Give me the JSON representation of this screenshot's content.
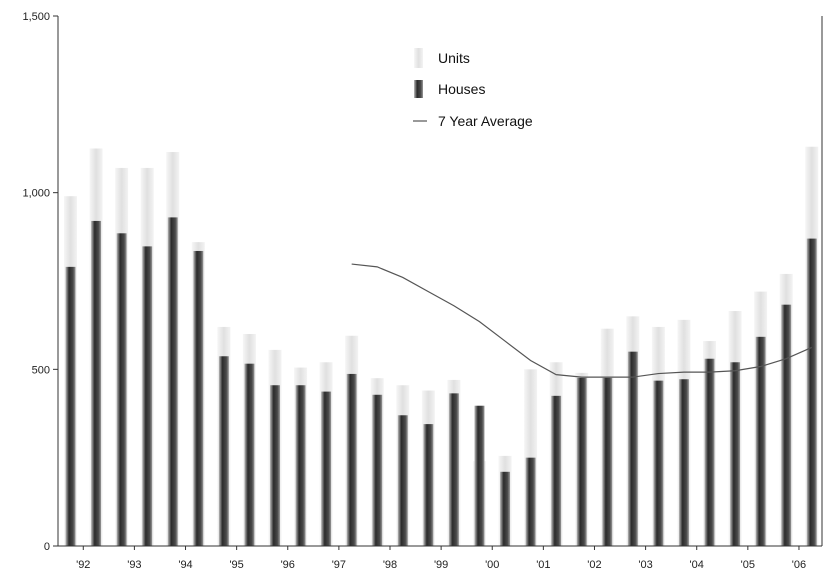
{
  "chart_data": {
    "type": "bar",
    "title": "",
    "xlabel": "",
    "ylabel": "",
    "ylim": [
      0,
      1500
    ],
    "y_ticks": [
      0,
      500,
      1000,
      1500
    ],
    "y_tick_labels": [
      "0",
      "500",
      "1,000",
      "1,500"
    ],
    "x_tick_labels": [
      "'92",
      "'93",
      "'94",
      "'95",
      "'96",
      "'97",
      "'98",
      "'99",
      "'00",
      "'01",
      "'02",
      "'03",
      "'04",
      "'05",
      "'06"
    ],
    "grid": false,
    "legend_position": "top-center",
    "legend": {
      "units_label": "Units",
      "houses_label": "Houses",
      "average_label": "7 Year Average"
    },
    "colors": {
      "units": "#e4e4e4",
      "houses": "#3a3a3a",
      "average": "#555555",
      "axis": "#333333"
    },
    "bars_per_year": 2,
    "units": [
      990,
      1125,
      1070,
      1070,
      1115,
      860,
      620,
      600,
      555,
      505,
      520,
      595,
      475,
      455,
      440,
      470,
      240,
      255,
      500,
      520,
      490,
      615,
      650,
      620,
      640,
      580,
      665,
      720,
      770,
      1130
    ],
    "houses": [
      790,
      920,
      885,
      848,
      930,
      835,
      537,
      516,
      455,
      455,
      437,
      487,
      428,
      370,
      345,
      432,
      397,
      210,
      250,
      425,
      476,
      476,
      550,
      468,
      472,
      530,
      520,
      592,
      683,
      870
    ],
    "seven_year_average": {
      "bar_index": [
        11,
        12,
        13,
        14,
        15,
        16,
        17,
        18,
        19,
        20,
        21,
        22,
        23,
        24,
        25,
        26,
        27,
        28,
        29
      ],
      "values": [
        798,
        790,
        760,
        720,
        680,
        635,
        580,
        525,
        485,
        478,
        478,
        478,
        488,
        492,
        492,
        496,
        508,
        530,
        562
      ]
    }
  }
}
